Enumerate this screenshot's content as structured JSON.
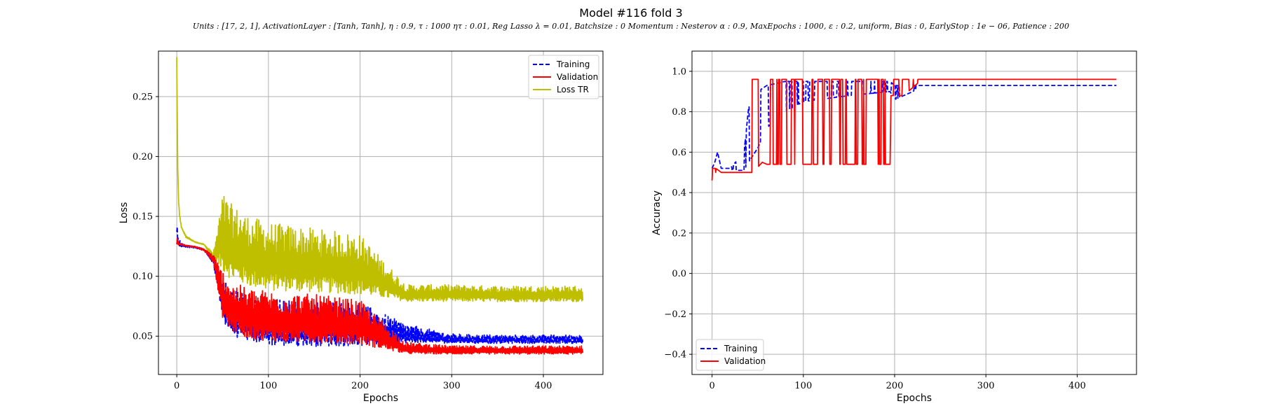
{
  "figure": {
    "title": "Model #116 fold 3",
    "subtitle": "Units : [17, 2, 1], ActivationLayer : [Tanh, Tanh], η : 0.9, τ : 1000 ητ : 0.01, Reg Lasso λ = 0.01, Batchsize : 0 Momentum : Nesterov α : 0.9, MaxEpochs : 1000, ε : 0.2, uniform, Bias : 0, EarlyStop : 1e − 06, Patience : 200"
  },
  "chart_data": [
    {
      "type": "line",
      "xlabel": "Epochs",
      "ylabel": "Loss",
      "xlim": [
        -20,
        465
      ],
      "ylim": [
        0.018,
        0.288
      ],
      "xticks": [
        0,
        100,
        200,
        300,
        400
      ],
      "yticks": [
        0.05,
        0.1,
        0.15,
        0.2,
        0.25
      ],
      "ytick_labels": [
        "0.05",
        "0.10",
        "0.15",
        "0.20",
        "0.25"
      ],
      "grid": true,
      "legend_position": "top-right",
      "legend": [
        "Training",
        "Validation",
        "Loss TR"
      ],
      "series": [
        {
          "name": "Training",
          "color": "#0000ff",
          "style": "dashed",
          "x": [
            0,
            1,
            2,
            5,
            10,
            20,
            30,
            40,
            50,
            60,
            80,
            100,
            120,
            150,
            200,
            250,
            300,
            350,
            400,
            443
          ],
          "low": [
            0.13,
            0.125,
            0.124,
            0.124,
            0.124,
            0.123,
            0.121,
            0.108,
            0.058,
            0.045,
            0.04,
            0.037,
            0.036,
            0.036,
            0.037,
            0.042,
            0.043,
            0.043,
            0.043,
            0.043
          ],
          "high": [
            0.16,
            0.138,
            0.132,
            0.128,
            0.126,
            0.125,
            0.123,
            0.118,
            0.1,
            0.09,
            0.085,
            0.082,
            0.08,
            0.08,
            0.078,
            0.06,
            0.052,
            0.051,
            0.051,
            0.051
          ]
        },
        {
          "name": "Validation",
          "color": "#ff0000",
          "style": "solid",
          "x": [
            0,
            1,
            2,
            5,
            10,
            20,
            30,
            40,
            50,
            60,
            80,
            100,
            120,
            150,
            200,
            250,
            300,
            350,
            400,
            443
          ],
          "low": [
            0.125,
            0.126,
            0.126,
            0.126,
            0.125,
            0.124,
            0.121,
            0.11,
            0.06,
            0.048,
            0.042,
            0.04,
            0.039,
            0.039,
            0.038,
            0.034,
            0.034,
            0.034,
            0.034,
            0.034
          ],
          "high": [
            0.135,
            0.132,
            0.128,
            0.127,
            0.126,
            0.125,
            0.123,
            0.118,
            0.105,
            0.095,
            0.09,
            0.088,
            0.086,
            0.085,
            0.08,
            0.045,
            0.042,
            0.042,
            0.042,
            0.042
          ]
        },
        {
          "name": "Loss TR",
          "color": "#bfbf00",
          "style": "solid",
          "x": [
            0,
            1,
            2,
            3,
            5,
            10,
            20,
            30,
            40,
            50,
            60,
            80,
            100,
            150,
            200,
            250,
            300,
            350,
            400,
            443
          ],
          "low": [
            0.283,
            0.19,
            0.16,
            0.15,
            0.14,
            0.132,
            0.128,
            0.126,
            0.112,
            0.095,
            0.088,
            0.083,
            0.08,
            0.079,
            0.078,
            0.077,
            0.077,
            0.077,
            0.077,
            0.077
          ],
          "high": [
            0.283,
            0.19,
            0.165,
            0.152,
            0.142,
            0.134,
            0.129,
            0.127,
            0.12,
            0.17,
            0.16,
            0.15,
            0.145,
            0.14,
            0.135,
            0.093,
            0.093,
            0.092,
            0.092,
            0.092
          ]
        }
      ]
    },
    {
      "type": "line",
      "xlabel": "Epochs",
      "ylabel": "Accuracy",
      "xlim": [
        -22,
        465
      ],
      "ylim": [
        -0.5,
        1.1
      ],
      "xticks": [
        0,
        100,
        200,
        300,
        400
      ],
      "yticks": [
        -0.4,
        -0.2,
        0.0,
        0.2,
        0.4,
        0.6,
        0.8,
        1.0
      ],
      "ytick_labels": [
        "−0.4",
        "−0.2",
        "0.0",
        "0.2",
        "0.4",
        "0.6",
        "0.8",
        "1.0"
      ],
      "grid": true,
      "legend_position": "bottom-left",
      "legend": [
        "Training",
        "Validation"
      ],
      "series": [
        {
          "name": "Training",
          "color": "#0000ff",
          "style": "dashed",
          "x": [
            0,
            3,
            6,
            10,
            20,
            35,
            40,
            50,
            60,
            80,
            100,
            150,
            195,
            200,
            210,
            220,
            230,
            300,
            400,
            443
          ],
          "low": [
            0.48,
            0.5,
            0.52,
            0.51,
            0.51,
            0.51,
            0.55,
            0.62,
            0.72,
            0.8,
            0.85,
            0.88,
            0.9,
            0.86,
            0.88,
            0.9,
            0.93,
            0.93,
            0.93,
            0.93
          ],
          "high": [
            0.52,
            0.55,
            0.6,
            0.52,
            0.52,
            0.6,
            0.82,
            0.9,
            0.93,
            0.95,
            0.95,
            0.95,
            0.95,
            0.93,
            0.93,
            0.93,
            0.93,
            0.93,
            0.93,
            0.93
          ]
        },
        {
          "name": "Validation",
          "color": "#ff0000",
          "style": "solid",
          "x": [
            0,
            2,
            4,
            10,
            20,
            34,
            36,
            45,
            55,
            60,
            100,
            150,
            195,
            196,
            205,
            210,
            220,
            230,
            300,
            443
          ],
          "low": [
            0.46,
            0.48,
            0.5,
            0.5,
            0.5,
            0.5,
            0.5,
            0.5,
            0.55,
            0.54,
            0.54,
            0.54,
            0.54,
            0.88,
            0.88,
            0.88,
            0.92,
            0.96,
            0.96,
            0.96
          ],
          "high": [
            0.52,
            0.52,
            0.52,
            0.5,
            0.5,
            0.5,
            0.96,
            0.96,
            0.96,
            0.96,
            0.96,
            0.96,
            0.96,
            0.96,
            0.96,
            0.96,
            0.96,
            0.96,
            0.96,
            0.96
          ]
        }
      ]
    }
  ]
}
